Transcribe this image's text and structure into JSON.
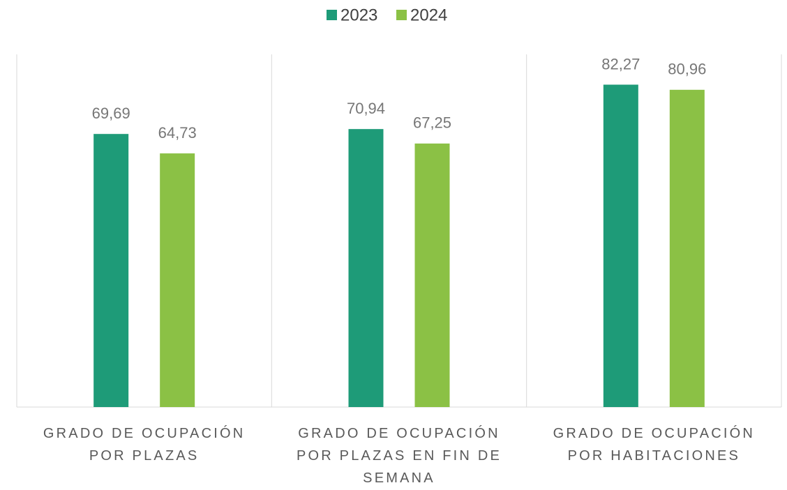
{
  "chart_data": {
    "type": "bar",
    "categories": [
      "GRADO DE OCUPACIÓN POR PLAZAS",
      "GRADO DE OCUPACIÓN POR PLAZAS EN FIN DE SEMANA",
      "GRADO DE OCUPACIÓN POR HABITACIONES"
    ],
    "series": [
      {
        "name": "2023",
        "color": "#1e9b78",
        "values": [
          69.69,
          70.94,
          82.27
        ],
        "value_labels": [
          "69,69",
          "70,94",
          "82,27"
        ]
      },
      {
        "name": "2024",
        "color": "#8bc145",
        "values": [
          64.73,
          67.25,
          80.96
        ],
        "value_labels": [
          "64,73",
          "67,25",
          "80,96"
        ]
      }
    ],
    "ylim": [
      0,
      90
    ],
    "legend": "top"
  }
}
